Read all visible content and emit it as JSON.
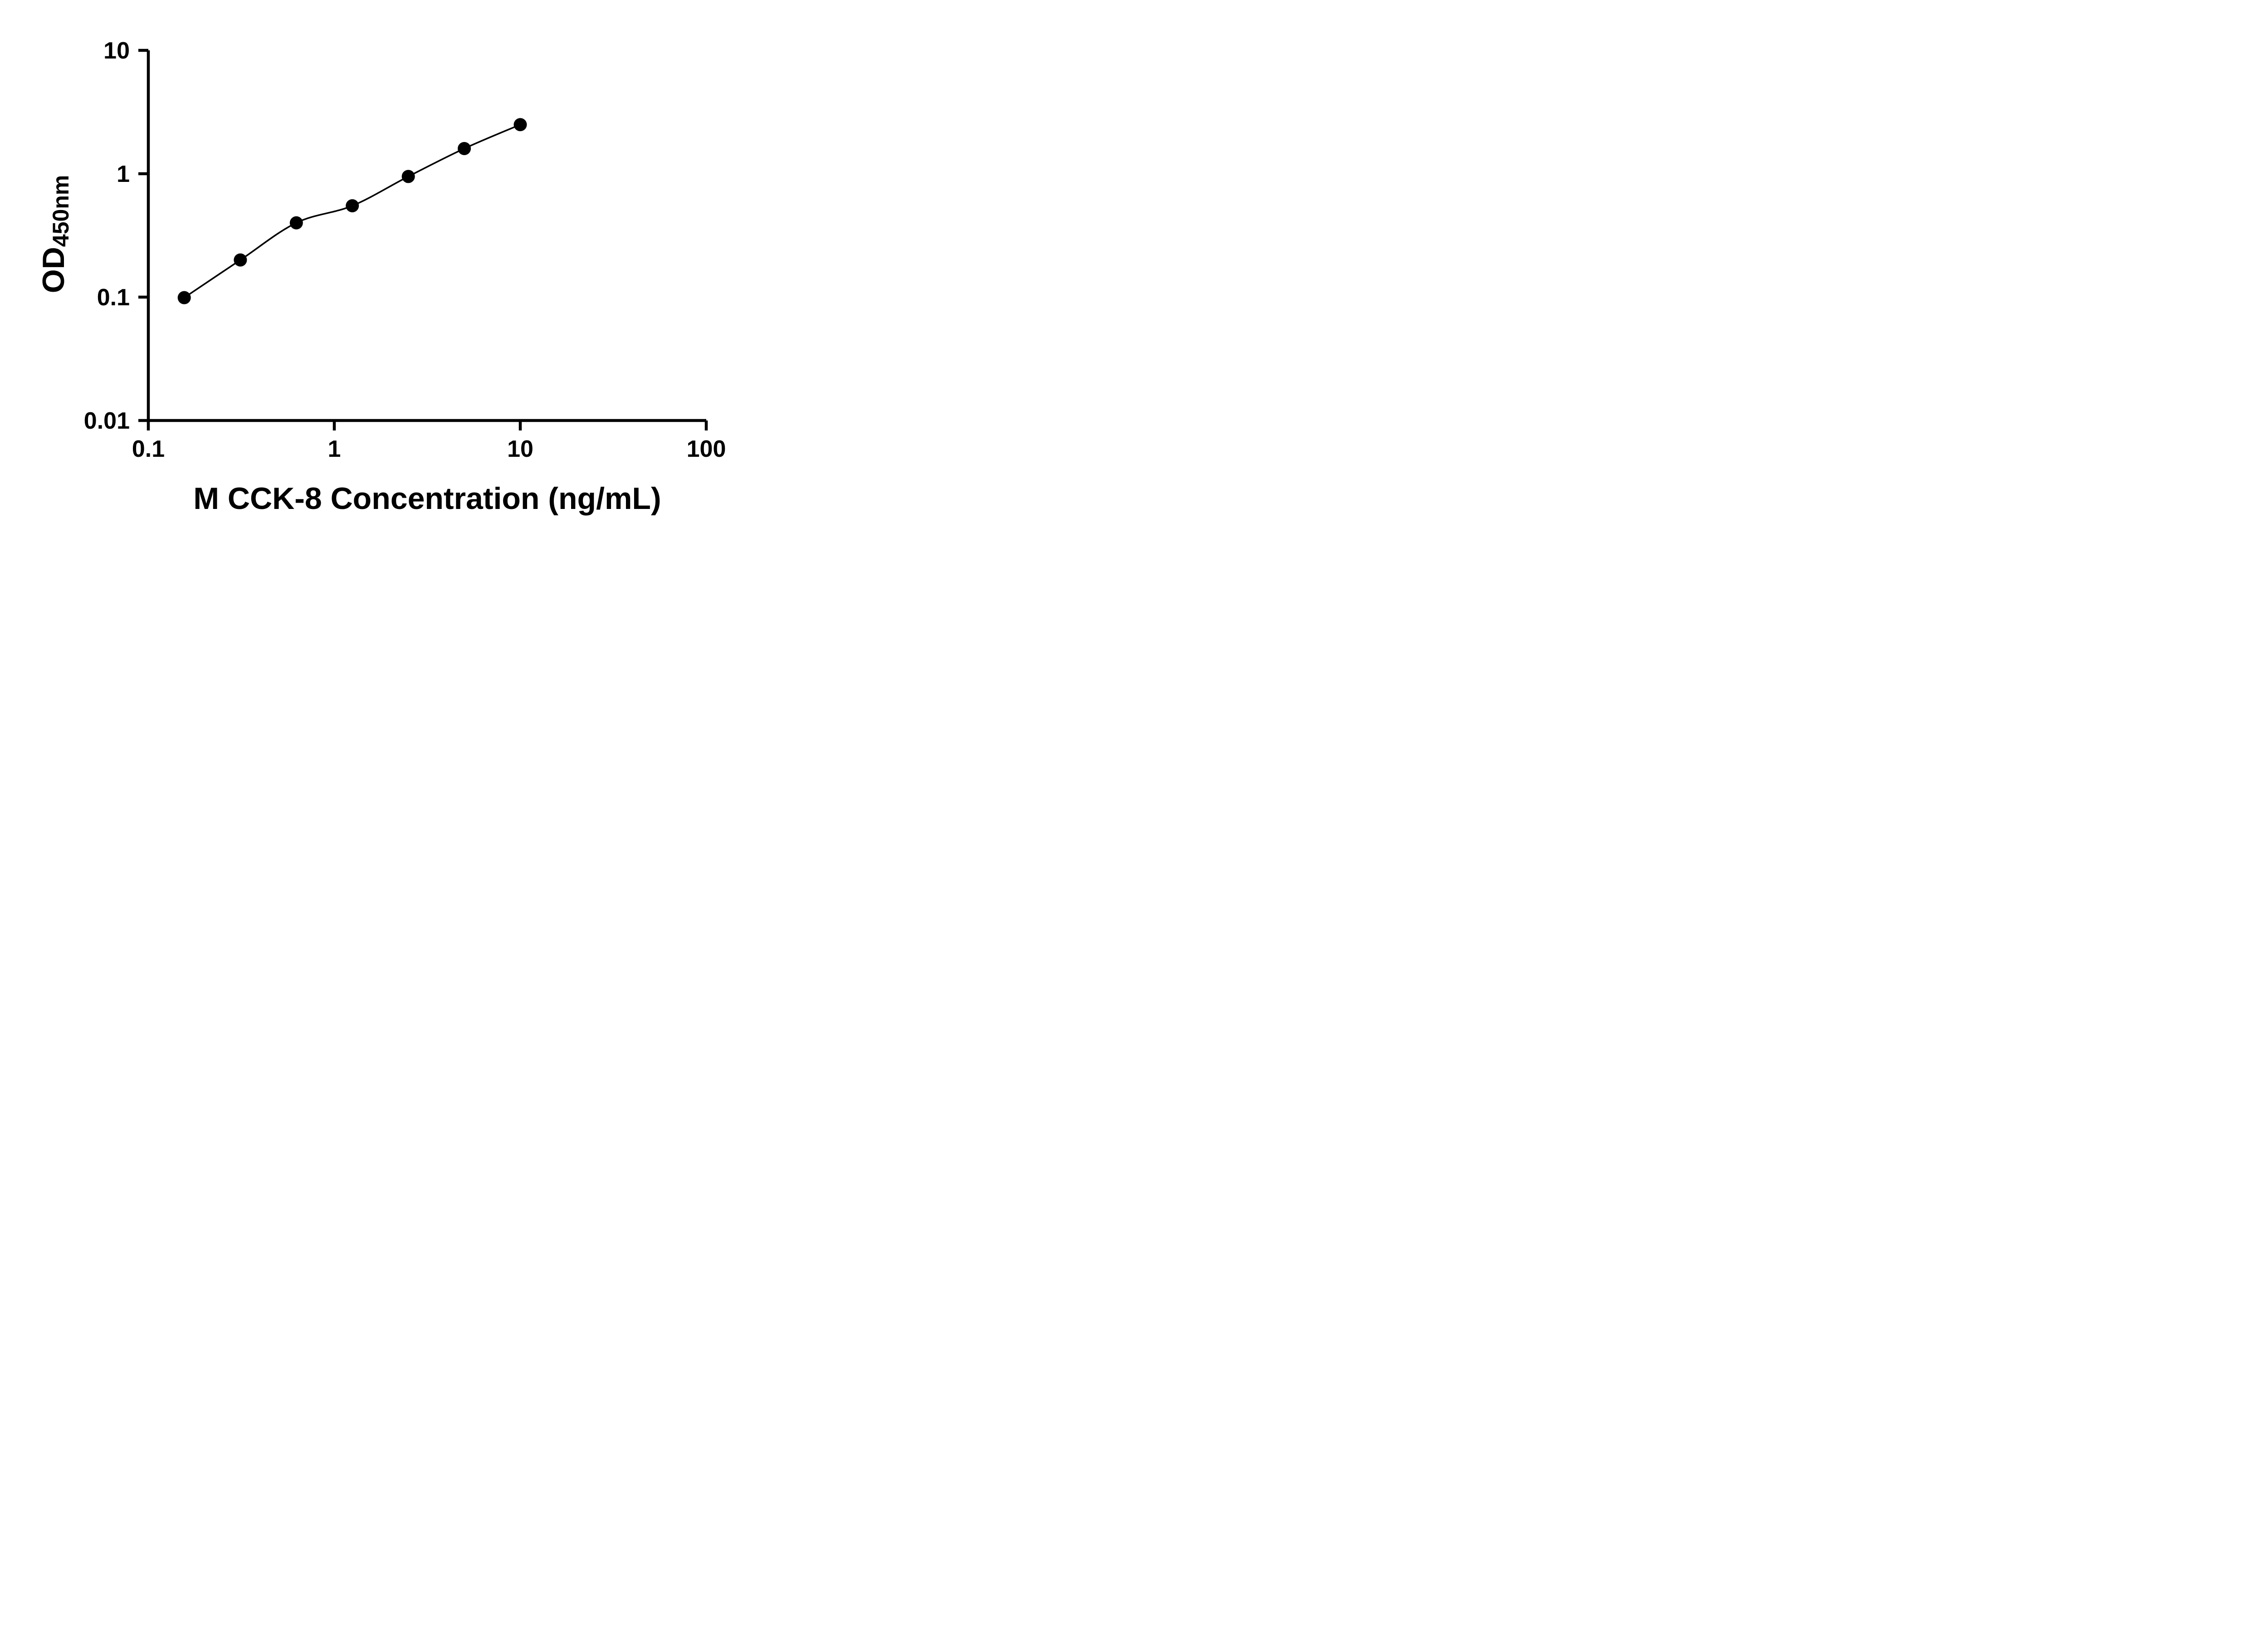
{
  "chart_data": {
    "type": "scatter",
    "x": [
      0.156,
      0.3125,
      0.625,
      1.25,
      2.5,
      5,
      10
    ],
    "y": [
      0.099,
      0.2,
      0.4,
      0.55,
      0.95,
      1.6,
      2.5
    ],
    "title": "",
    "xlabel": "M CCK-8 Concentration (ng/mL)",
    "ylabel_main": "OD",
    "ylabel_sub": "450nm",
    "xscale": "log",
    "yscale": "log",
    "xlim": [
      0.1,
      100
    ],
    "ylim": [
      0.01,
      10
    ],
    "xticks": {
      "values": [
        0.1,
        1,
        10,
        100
      ],
      "labels": [
        "0.1",
        "1",
        "10",
        "100"
      ]
    },
    "yticks": {
      "values": [
        10,
        1,
        0.1,
        0.01
      ],
      "labels": [
        "10",
        "1",
        "0.1",
        "0.01"
      ]
    },
    "grid": false,
    "legend": false,
    "line": "smooth fit through points",
    "marker": "filled-circle",
    "marker_color": "#000000",
    "line_color": "#000000",
    "axis_color": "#000000",
    "background": "#ffffff"
  }
}
